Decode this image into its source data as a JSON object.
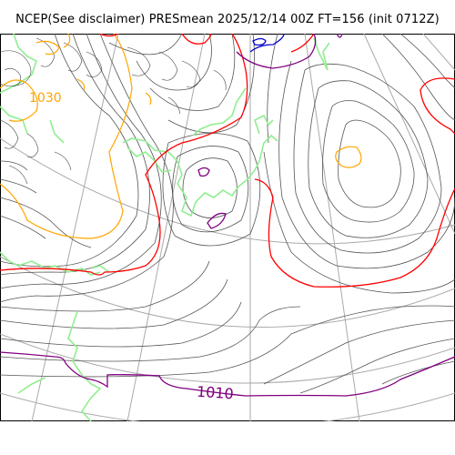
{
  "title": "NCEP(See disclaimer) PRESmean 2025/12/14 00Z FT=156 (init 0712Z)",
  "labels": {
    "isobar_1010": "1010",
    "isobar_1030": "1030"
  },
  "colors": {
    "isobar_thin": "#555555",
    "isobar_1010": "#800080",
    "isobar_1020": "#ff0000",
    "isobar_1030": "#ffa500",
    "isobar_low": "#0000cc",
    "coastline": "#90ee90",
    "graticule": "#aaaaaa"
  }
}
